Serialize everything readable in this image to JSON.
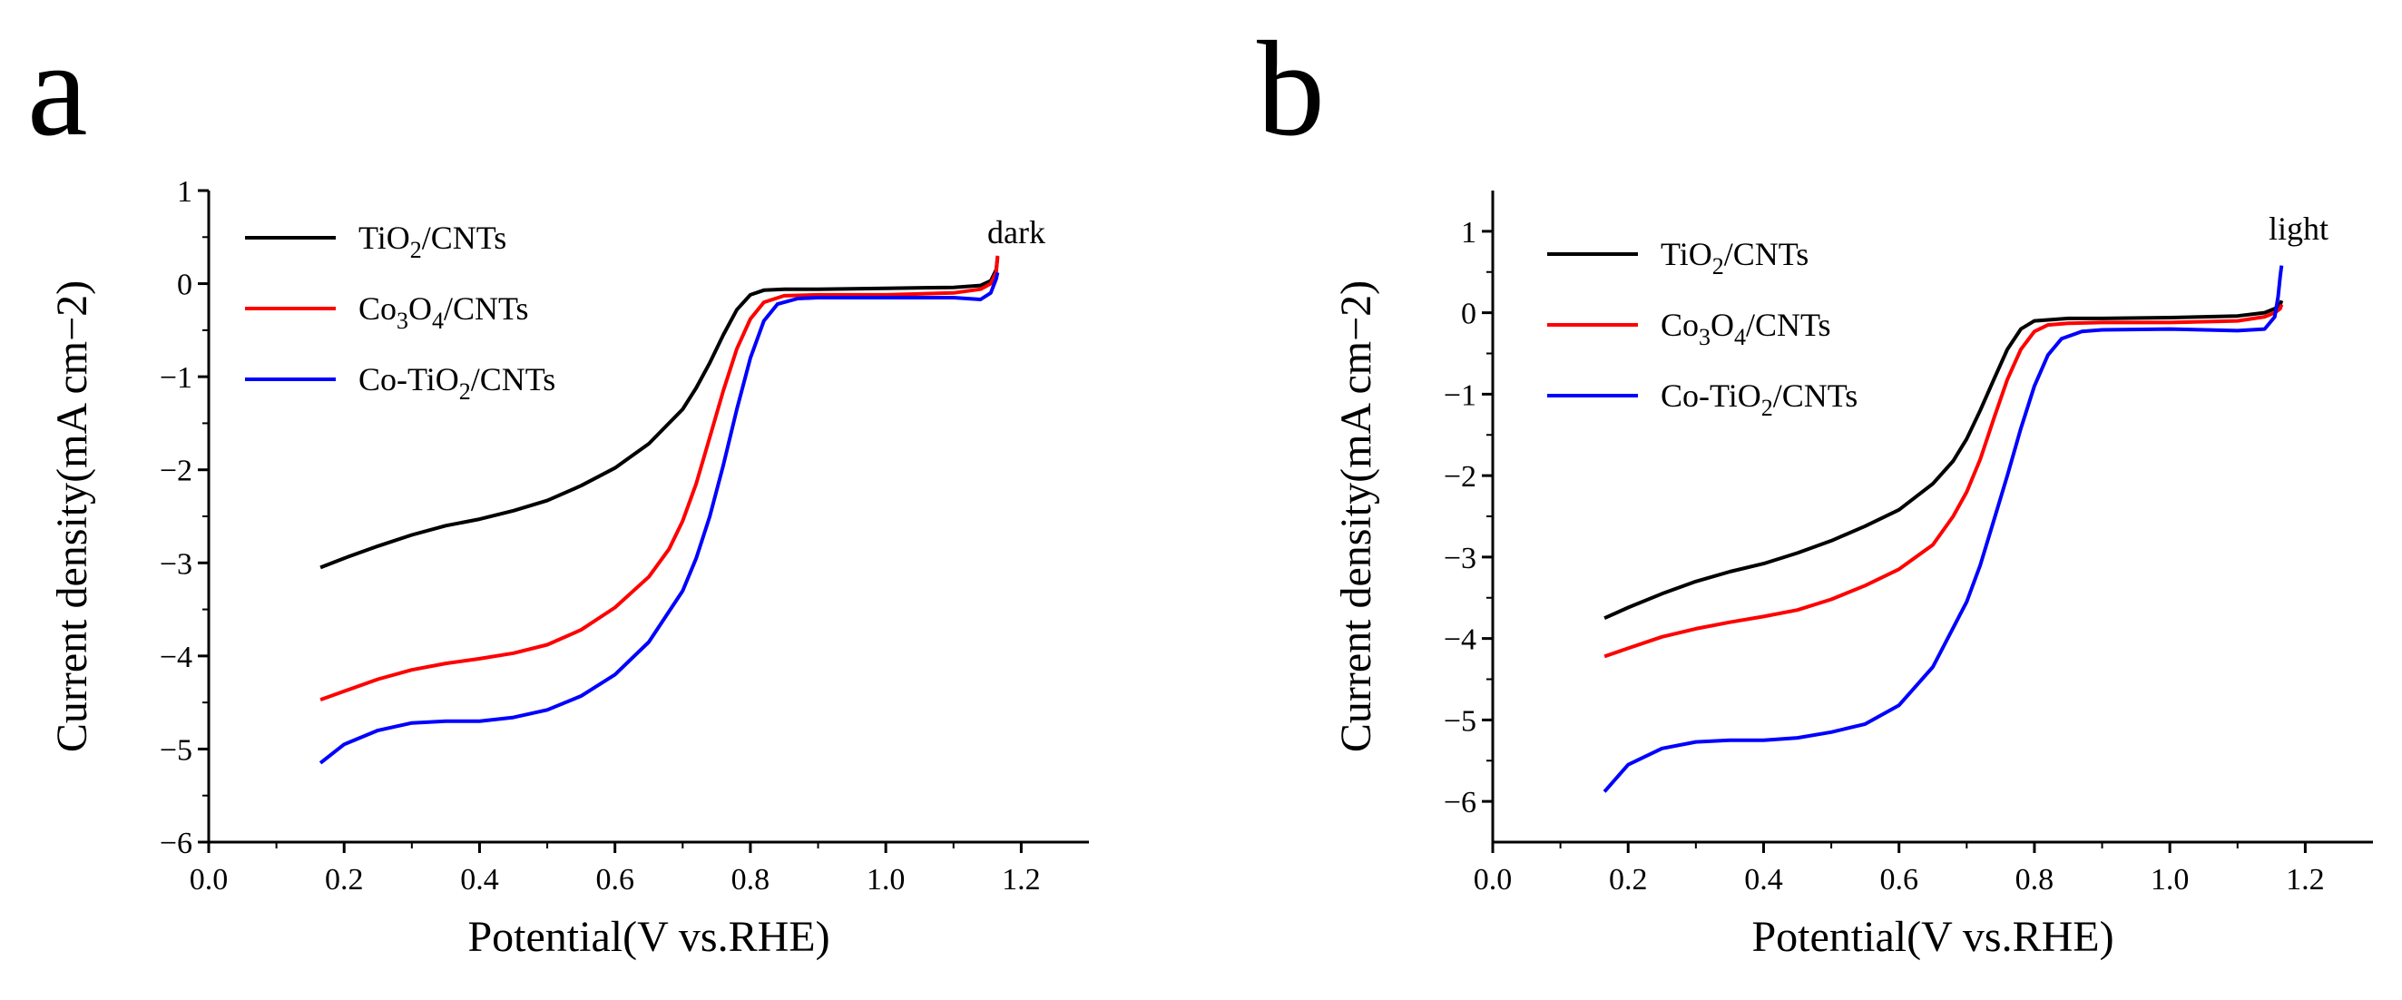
{
  "chart_data": [
    {
      "type": "line",
      "panel_label": "a",
      "annotation": "dark",
      "xlabel": "Potential(V vs.RHE)",
      "ylabel": "Current density(mA cm−2)",
      "xlim": [
        0.0,
        1.3
      ],
      "ylim": [
        -6,
        1
      ],
      "xticks": [
        0.0,
        0.2,
        0.4,
        0.6,
        0.8,
        1.0,
        1.2
      ],
      "yticks": [
        -6,
        -5,
        -4,
        -3,
        -2,
        -1,
        0,
        1
      ],
      "xtick_labels": [
        "0.0",
        "0.2",
        "0.4",
        "0.6",
        "0.8",
        "1.0",
        "1.2"
      ],
      "ytick_labels": [
        "−6",
        "−5",
        "−4",
        "−3",
        "−2",
        "−1",
        "0",
        "1"
      ],
      "legend_position": "top-left",
      "series": [
        {
          "name": "TiO2/CNTs",
          "label_parts": [
            "TiO",
            "2",
            "/CNTs"
          ],
          "color": "#000000",
          "points": [
            [
              0.165,
              -3.05
            ],
            [
              0.2,
              -2.95
            ],
            [
              0.25,
              -2.82
            ],
            [
              0.3,
              -2.7
            ],
            [
              0.35,
              -2.6
            ],
            [
              0.4,
              -2.53
            ],
            [
              0.45,
              -2.44
            ],
            [
              0.5,
              -2.33
            ],
            [
              0.55,
              -2.17
            ],
            [
              0.6,
              -1.98
            ],
            [
              0.65,
              -1.72
            ],
            [
              0.7,
              -1.35
            ],
            [
              0.72,
              -1.12
            ],
            [
              0.74,
              -0.85
            ],
            [
              0.76,
              -0.55
            ],
            [
              0.78,
              -0.28
            ],
            [
              0.8,
              -0.12
            ],
            [
              0.82,
              -0.07
            ],
            [
              0.85,
              -0.06
            ],
            [
              0.9,
              -0.06
            ],
            [
              1.0,
              -0.05
            ],
            [
              1.1,
              -0.04
            ],
            [
              1.14,
              -0.02
            ],
            [
              1.155,
              0.03
            ],
            [
              1.163,
              0.15
            ],
            [
              1.165,
              0.28
            ]
          ]
        },
        {
          "name": "Co3O4/CNTs",
          "label_parts": [
            "Co",
            "3",
            "O",
            "4",
            "/CNTs"
          ],
          "color": "#ff0000",
          "points": [
            [
              0.165,
              -4.47
            ],
            [
              0.2,
              -4.38
            ],
            [
              0.25,
              -4.25
            ],
            [
              0.3,
              -4.15
            ],
            [
              0.35,
              -4.08
            ],
            [
              0.4,
              -4.03
            ],
            [
              0.45,
              -3.97
            ],
            [
              0.5,
              -3.88
            ],
            [
              0.55,
              -3.72
            ],
            [
              0.6,
              -3.48
            ],
            [
              0.65,
              -3.15
            ],
            [
              0.68,
              -2.85
            ],
            [
              0.7,
              -2.55
            ],
            [
              0.72,
              -2.15
            ],
            [
              0.74,
              -1.65
            ],
            [
              0.76,
              -1.15
            ],
            [
              0.78,
              -0.7
            ],
            [
              0.8,
              -0.38
            ],
            [
              0.82,
              -0.2
            ],
            [
              0.85,
              -0.13
            ],
            [
              0.9,
              -0.12
            ],
            [
              1.0,
              -0.12
            ],
            [
              1.1,
              -0.1
            ],
            [
              1.14,
              -0.06
            ],
            [
              1.155,
              0.0
            ],
            [
              1.163,
              0.12
            ],
            [
              1.165,
              0.3
            ]
          ]
        },
        {
          "name": "Co-TiO2/CNTs",
          "label_parts": [
            "Co-TiO",
            "2",
            "/CNTs"
          ],
          "color": "#0000ff",
          "points": [
            [
              0.165,
              -5.15
            ],
            [
              0.2,
              -4.95
            ],
            [
              0.25,
              -4.8
            ],
            [
              0.3,
              -4.72
            ],
            [
              0.35,
              -4.7
            ],
            [
              0.4,
              -4.7
            ],
            [
              0.45,
              -4.66
            ],
            [
              0.5,
              -4.58
            ],
            [
              0.55,
              -4.43
            ],
            [
              0.6,
              -4.2
            ],
            [
              0.65,
              -3.85
            ],
            [
              0.7,
              -3.3
            ],
            [
              0.72,
              -2.95
            ],
            [
              0.74,
              -2.5
            ],
            [
              0.76,
              -1.95
            ],
            [
              0.78,
              -1.35
            ],
            [
              0.8,
              -0.8
            ],
            [
              0.82,
              -0.4
            ],
            [
              0.84,
              -0.22
            ],
            [
              0.87,
              -0.16
            ],
            [
              0.9,
              -0.15
            ],
            [
              1.0,
              -0.15
            ],
            [
              1.1,
              -0.15
            ],
            [
              1.14,
              -0.17
            ],
            [
              1.155,
              -0.1
            ],
            [
              1.163,
              0.05
            ],
            [
              1.165,
              0.12
            ]
          ]
        }
      ]
    },
    {
      "type": "line",
      "panel_label": "b",
      "annotation": "light",
      "xlabel": "Potential(V vs.RHE)",
      "ylabel": "Current density(mA cm−2)",
      "xlim": [
        0.0,
        1.3
      ],
      "ylim": [
        -6.5,
        1.5
      ],
      "xticks": [
        0.0,
        0.2,
        0.4,
        0.6,
        0.8,
        1.0,
        1.2
      ],
      "yticks": [
        -6,
        -5,
        -4,
        -3,
        -2,
        -1,
        0,
        1
      ],
      "xtick_labels": [
        "0.0",
        "0.2",
        "0.4",
        "0.6",
        "0.8",
        "1.0",
        "1.2"
      ],
      "ytick_labels": [
        "−6",
        "−5",
        "−4",
        "−3",
        "−2",
        "−1",
        "0",
        "1"
      ],
      "legend_position": "top-left",
      "series": [
        {
          "name": "TiO2/CNTs",
          "label_parts": [
            "TiO",
            "2",
            "/CNTs"
          ],
          "color": "#000000",
          "points": [
            [
              0.165,
              -3.75
            ],
            [
              0.2,
              -3.62
            ],
            [
              0.25,
              -3.45
            ],
            [
              0.3,
              -3.3
            ],
            [
              0.35,
              -3.18
            ],
            [
              0.4,
              -3.08
            ],
            [
              0.45,
              -2.95
            ],
            [
              0.5,
              -2.8
            ],
            [
              0.55,
              -2.62
            ],
            [
              0.6,
              -2.42
            ],
            [
              0.65,
              -2.1
            ],
            [
              0.68,
              -1.82
            ],
            [
              0.7,
              -1.55
            ],
            [
              0.72,
              -1.2
            ],
            [
              0.74,
              -0.82
            ],
            [
              0.76,
              -0.45
            ],
            [
              0.78,
              -0.2
            ],
            [
              0.8,
              -0.1
            ],
            [
              0.85,
              -0.07
            ],
            [
              0.9,
              -0.07
            ],
            [
              1.0,
              -0.06
            ],
            [
              1.1,
              -0.04
            ],
            [
              1.14,
              0.0
            ],
            [
              1.155,
              0.05
            ],
            [
              1.163,
              0.1
            ],
            [
              1.165,
              0.15
            ]
          ]
        },
        {
          "name": "Co3O4/CNTs",
          "label_parts": [
            "Co",
            "3",
            "O",
            "4",
            "/CNTs"
          ],
          "color": "#ff0000",
          "points": [
            [
              0.165,
              -4.22
            ],
            [
              0.2,
              -4.12
            ],
            [
              0.25,
              -3.98
            ],
            [
              0.3,
              -3.88
            ],
            [
              0.35,
              -3.8
            ],
            [
              0.4,
              -3.73
            ],
            [
              0.45,
              -3.65
            ],
            [
              0.5,
              -3.52
            ],
            [
              0.55,
              -3.35
            ],
            [
              0.6,
              -3.15
            ],
            [
              0.65,
              -2.85
            ],
            [
              0.68,
              -2.5
            ],
            [
              0.7,
              -2.2
            ],
            [
              0.72,
              -1.8
            ],
            [
              0.74,
              -1.3
            ],
            [
              0.76,
              -0.82
            ],
            [
              0.78,
              -0.45
            ],
            [
              0.8,
              -0.23
            ],
            [
              0.82,
              -0.15
            ],
            [
              0.85,
              -0.13
            ],
            [
              0.9,
              -0.12
            ],
            [
              1.0,
              -0.12
            ],
            [
              1.1,
              -0.1
            ],
            [
              1.14,
              -0.05
            ],
            [
              1.155,
              0.0
            ],
            [
              1.163,
              0.05
            ],
            [
              1.165,
              0.1
            ]
          ]
        },
        {
          "name": "Co-TiO2/CNTs",
          "label_parts": [
            "Co-TiO",
            "2",
            "/CNTs"
          ],
          "color": "#0000ff",
          "points": [
            [
              0.165,
              -5.88
            ],
            [
              0.2,
              -5.55
            ],
            [
              0.25,
              -5.35
            ],
            [
              0.3,
              -5.27
            ],
            [
              0.35,
              -5.25
            ],
            [
              0.4,
              -5.25
            ],
            [
              0.45,
              -5.22
            ],
            [
              0.5,
              -5.15
            ],
            [
              0.55,
              -5.05
            ],
            [
              0.6,
              -4.82
            ],
            [
              0.65,
              -4.35
            ],
            [
              0.7,
              -3.55
            ],
            [
              0.72,
              -3.1
            ],
            [
              0.74,
              -2.55
            ],
            [
              0.76,
              -2.0
            ],
            [
              0.78,
              -1.42
            ],
            [
              0.8,
              -0.9
            ],
            [
              0.82,
              -0.52
            ],
            [
              0.84,
              -0.32
            ],
            [
              0.87,
              -0.23
            ],
            [
              0.9,
              -0.21
            ],
            [
              1.0,
              -0.2
            ],
            [
              1.1,
              -0.22
            ],
            [
              1.14,
              -0.2
            ],
            [
              1.155,
              -0.05
            ],
            [
              1.16,
              0.2
            ],
            [
              1.163,
              0.45
            ],
            [
              1.165,
              0.58
            ]
          ]
        }
      ]
    }
  ]
}
